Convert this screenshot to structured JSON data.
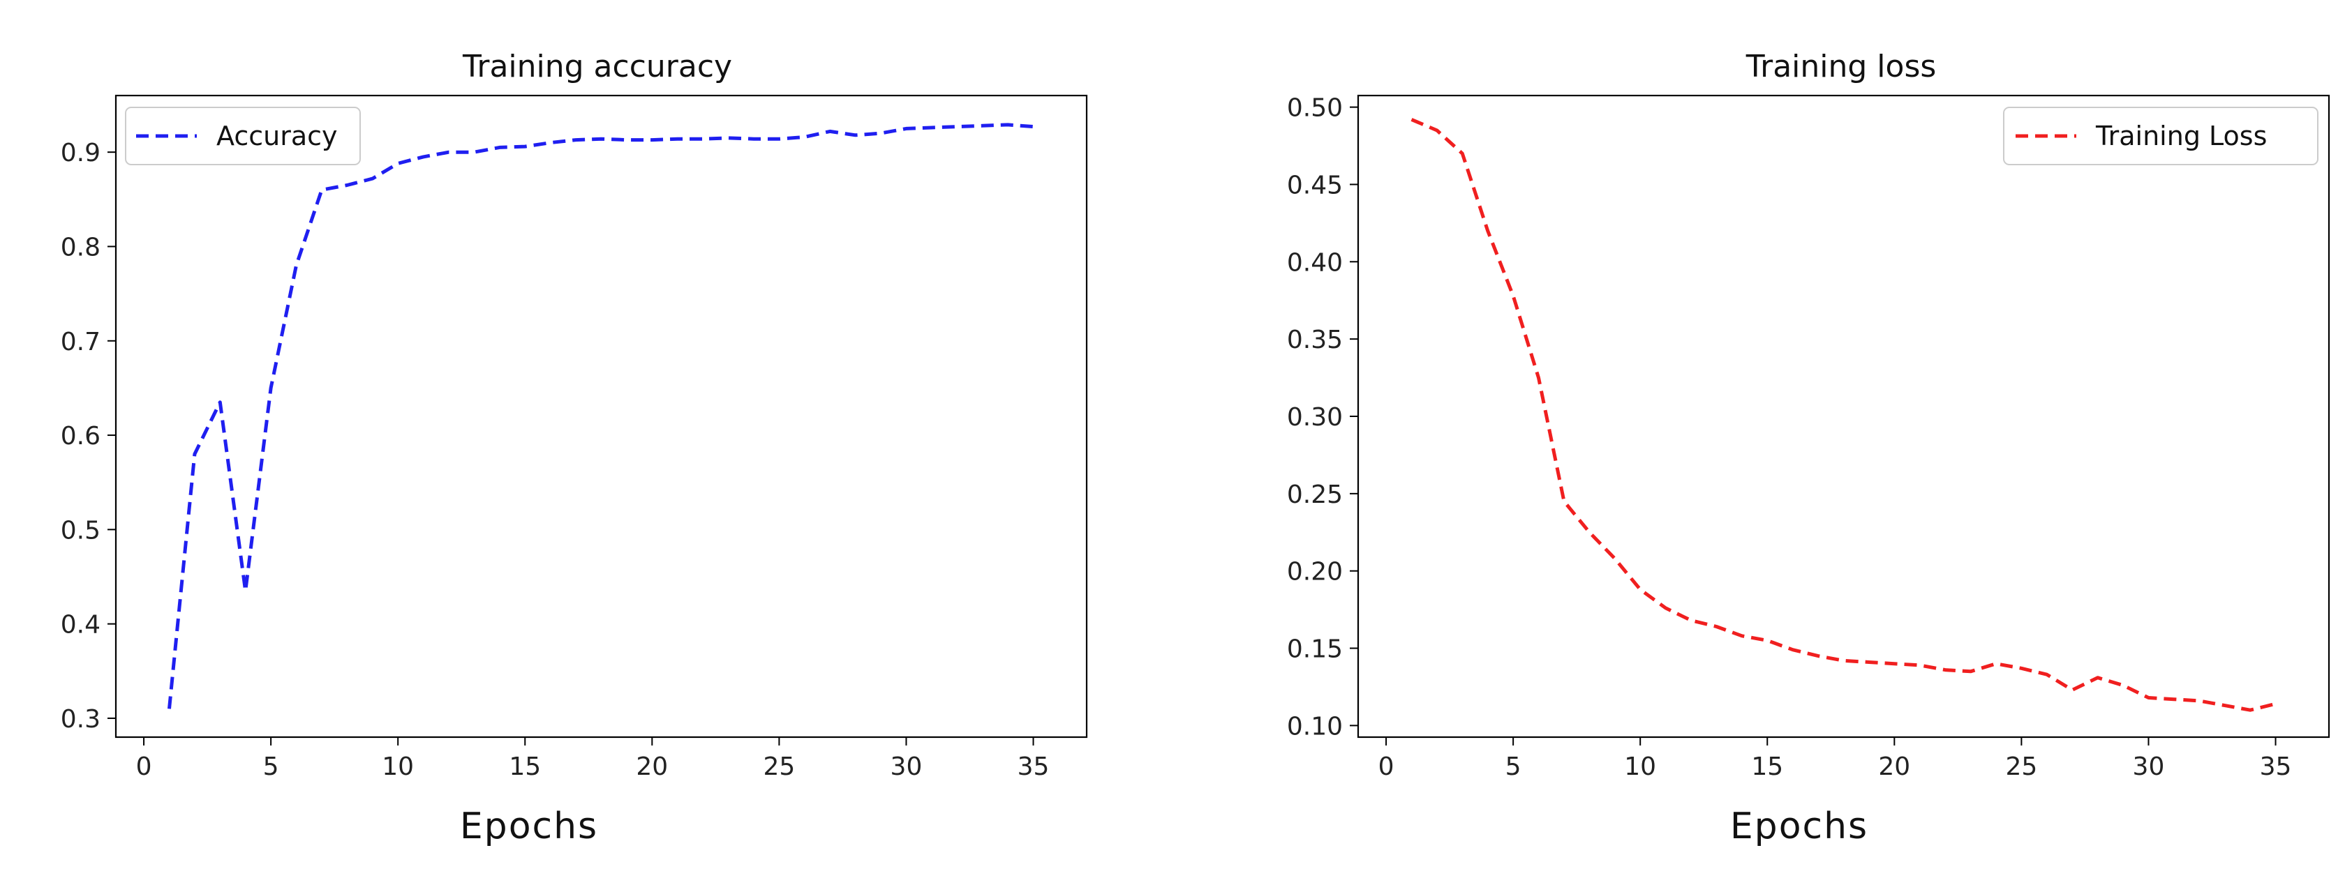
{
  "colors": {
    "accuracy": "#1f1ff0",
    "loss": "#f01f1f"
  },
  "chart_data": [
    {
      "type": "line",
      "title": "Training accuracy",
      "xlabel": "Epochs",
      "ylabel": "",
      "xlim": [
        -1.1,
        37.1
      ],
      "ylim": [
        0.28,
        0.96
      ],
      "xticks": [
        0,
        5,
        10,
        15,
        20,
        25,
        30,
        35
      ],
      "yticks": [
        0.3,
        0.4,
        0.5,
        0.6,
        0.7,
        0.8,
        0.9
      ],
      "xtick_labels": [
        "0",
        "5",
        "10",
        "15",
        "20",
        "25",
        "30",
        "35"
      ],
      "ytick_labels": [
        "0.3",
        "0.4",
        "0.5",
        "0.6",
        "0.7",
        "0.8",
        "0.9"
      ],
      "legend_position": "upper left",
      "grid": false,
      "series": [
        {
          "name": "Accuracy",
          "color": "#1f1ff0",
          "linestyle": "dashed",
          "x": [
            1,
            2,
            3,
            4,
            5,
            6,
            7,
            8,
            9,
            10,
            11,
            12,
            13,
            14,
            15,
            16,
            17,
            18,
            19,
            20,
            21,
            22,
            23,
            24,
            25,
            26,
            27,
            28,
            29,
            30,
            31,
            32,
            33,
            34,
            35
          ],
          "y": [
            0.31,
            0.58,
            0.635,
            0.435,
            0.65,
            0.78,
            0.86,
            0.865,
            0.872,
            0.888,
            0.895,
            0.9,
            0.9,
            0.905,
            0.906,
            0.91,
            0.913,
            0.914,
            0.913,
            0.913,
            0.914,
            0.914,
            0.915,
            0.914,
            0.914,
            0.916,
            0.922,
            0.918,
            0.92,
            0.925,
            0.926,
            0.927,
            0.928,
            0.929,
            0.927
          ]
        }
      ]
    },
    {
      "type": "line",
      "title": "Training loss",
      "xlabel": "Epochs",
      "ylabel": "",
      "xlim": [
        -1.1,
        37.1
      ],
      "ylim": [
        0.0925,
        0.5075
      ],
      "xticks": [
        0,
        5,
        10,
        15,
        20,
        25,
        30,
        35
      ],
      "yticks": [
        0.1,
        0.15,
        0.2,
        0.25,
        0.3,
        0.35,
        0.4,
        0.45,
        0.5
      ],
      "xtick_labels": [
        "0",
        "5",
        "10",
        "15",
        "20",
        "25",
        "30",
        "35"
      ],
      "ytick_labels": [
        "0.10",
        "0.15",
        "0.20",
        "0.25",
        "0.30",
        "0.35",
        "0.40",
        "0.45",
        "0.50"
      ],
      "legend_position": "upper right",
      "grid": false,
      "series": [
        {
          "name": "Training Loss",
          "color": "#f01f1f",
          "linestyle": "dashed",
          "x": [
            1,
            2,
            3,
            4,
            5,
            6,
            7,
            8,
            9,
            10,
            11,
            12,
            13,
            14,
            15,
            16,
            17,
            18,
            19,
            20,
            21,
            22,
            23,
            24,
            25,
            26,
            27,
            28,
            29,
            30,
            31,
            32,
            33,
            34,
            35
          ],
          "y": [
            0.492,
            0.485,
            0.47,
            0.42,
            0.378,
            0.325,
            0.245,
            0.225,
            0.208,
            0.188,
            0.176,
            0.168,
            0.164,
            0.158,
            0.155,
            0.149,
            0.145,
            0.142,
            0.141,
            0.14,
            0.139,
            0.136,
            0.135,
            0.14,
            0.137,
            0.133,
            0.123,
            0.131,
            0.126,
            0.118,
            0.117,
            0.116,
            0.113,
            0.11,
            0.114
          ]
        }
      ]
    }
  ]
}
